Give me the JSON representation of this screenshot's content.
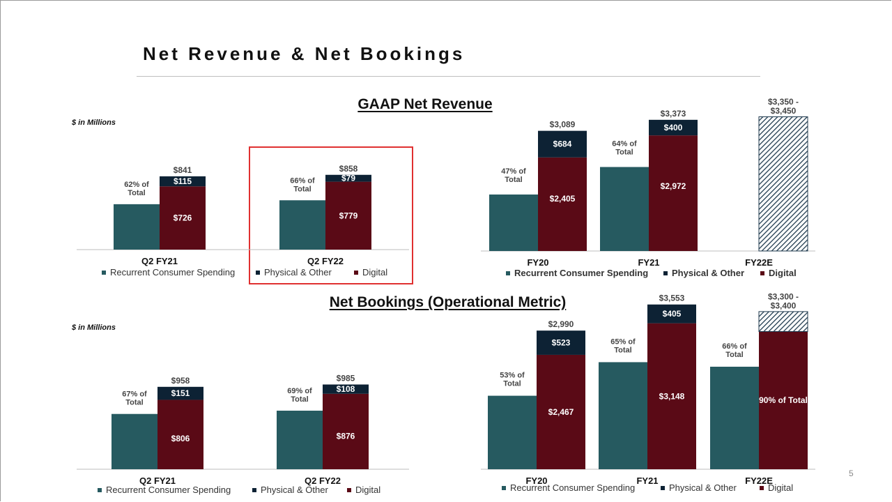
{
  "slide": {
    "title": "Net Revenue & Net Bookings",
    "page_number": "5",
    "units_label": "$ in Millions",
    "gaap_section_title": "GAAP Net Revenue",
    "bookings_section_title": "Net Bookings (Operational Metric)"
  },
  "colors": {
    "recurrent": "#265a60",
    "physical": "#0d2234",
    "digital": "#5a0a16",
    "estimate_hatch": "#1f3a4e"
  },
  "legend": {
    "recurrent": "Recurrent Consumer Spending",
    "physical": "Physical & Other",
    "digital": "Digital"
  },
  "chart_data": [
    {
      "id": "gaap-quarterly",
      "type": "bar",
      "title": "GAAP Net Revenue",
      "units": "$ in Millions",
      "categories": [
        "Q2 FY21",
        "Q2 FY22"
      ],
      "series": [
        {
          "name": "Recurrent Consumer Spending",
          "values": [
            521,
            566
          ],
          "labels": [
            "62% of Total",
            "66% of Total"
          ]
        },
        {
          "name": "Physical & Other",
          "values": [
            115,
            79
          ],
          "labels": [
            "$115",
            "$79"
          ]
        },
        {
          "name": "Digital",
          "values": [
            726,
            779
          ],
          "labels": [
            "$726",
            "$779"
          ]
        }
      ],
      "totals": [
        "$841",
        "$858"
      ],
      "annotations": [
        "Q2 FY22 highlighted"
      ],
      "ylim": [
        0,
        1000
      ]
    },
    {
      "id": "gaap-annual",
      "type": "bar",
      "title": "GAAP Net Revenue",
      "categories": [
        "FY20",
        "FY21",
        "FY22E"
      ],
      "series": [
        {
          "name": "Recurrent Consumer Spending",
          "values": [
            1452,
            2159,
            null
          ],
          "labels": [
            "47% of Total",
            "64% of Total",
            ""
          ]
        },
        {
          "name": "Physical & Other",
          "values": [
            684,
            400,
            null
          ],
          "labels": [
            "$684",
            "$400",
            ""
          ]
        },
        {
          "name": "Digital",
          "values": [
            2405,
            2972,
            null
          ],
          "labels": [
            "$2,405",
            "$2,972",
            ""
          ]
        }
      ],
      "totals": [
        "$3,089",
        "$3,373",
        "$3,350 - $3,450"
      ],
      "estimate": {
        "category": "FY22E",
        "range": [
          3350,
          3450
        ]
      },
      "ylim": [
        0,
        3500
      ]
    },
    {
      "id": "bookings-quarterly",
      "type": "bar",
      "title": "Net Bookings (Operational Metric)",
      "units": "$ in Millions",
      "categories": [
        "Q2 FY21",
        "Q2 FY22"
      ],
      "series": [
        {
          "name": "Recurrent Consumer Spending",
          "values": [
            642,
            680
          ],
          "labels": [
            "67% of Total",
            "69% of Total"
          ]
        },
        {
          "name": "Physical & Other",
          "values": [
            151,
            108
          ],
          "labels": [
            "$151",
            "$108"
          ]
        },
        {
          "name": "Digital",
          "values": [
            806,
            876
          ],
          "labels": [
            "$806",
            "$876"
          ]
        }
      ],
      "totals": [
        "$958",
        "$985"
      ],
      "ylim": [
        0,
        1000
      ]
    },
    {
      "id": "bookings-annual",
      "type": "bar",
      "title": "Net Bookings (Operational Metric)",
      "categories": [
        "FY20",
        "FY21",
        "FY22E"
      ],
      "series": [
        {
          "name": "Recurrent Consumer Spending",
          "values": [
            1585,
            2309,
            2211
          ],
          "labels": [
            "53% of Total",
            "65% of Total",
            "66% of Total"
          ]
        },
        {
          "name": "Physical & Other",
          "values": [
            523,
            405,
            null
          ],
          "labels": [
            "$523",
            "$405",
            ""
          ]
        },
        {
          "name": "Digital",
          "values": [
            2467,
            3148,
            2970
          ],
          "labels": [
            "$2,467",
            "$3,148",
            "90% of Total"
          ]
        }
      ],
      "totals": [
        "$2,990",
        "$3,553",
        "$3,300 - $3,400"
      ],
      "estimate": {
        "category": "FY22E",
        "range": [
          3300,
          3400
        ]
      },
      "ylim": [
        0,
        3600
      ]
    }
  ]
}
